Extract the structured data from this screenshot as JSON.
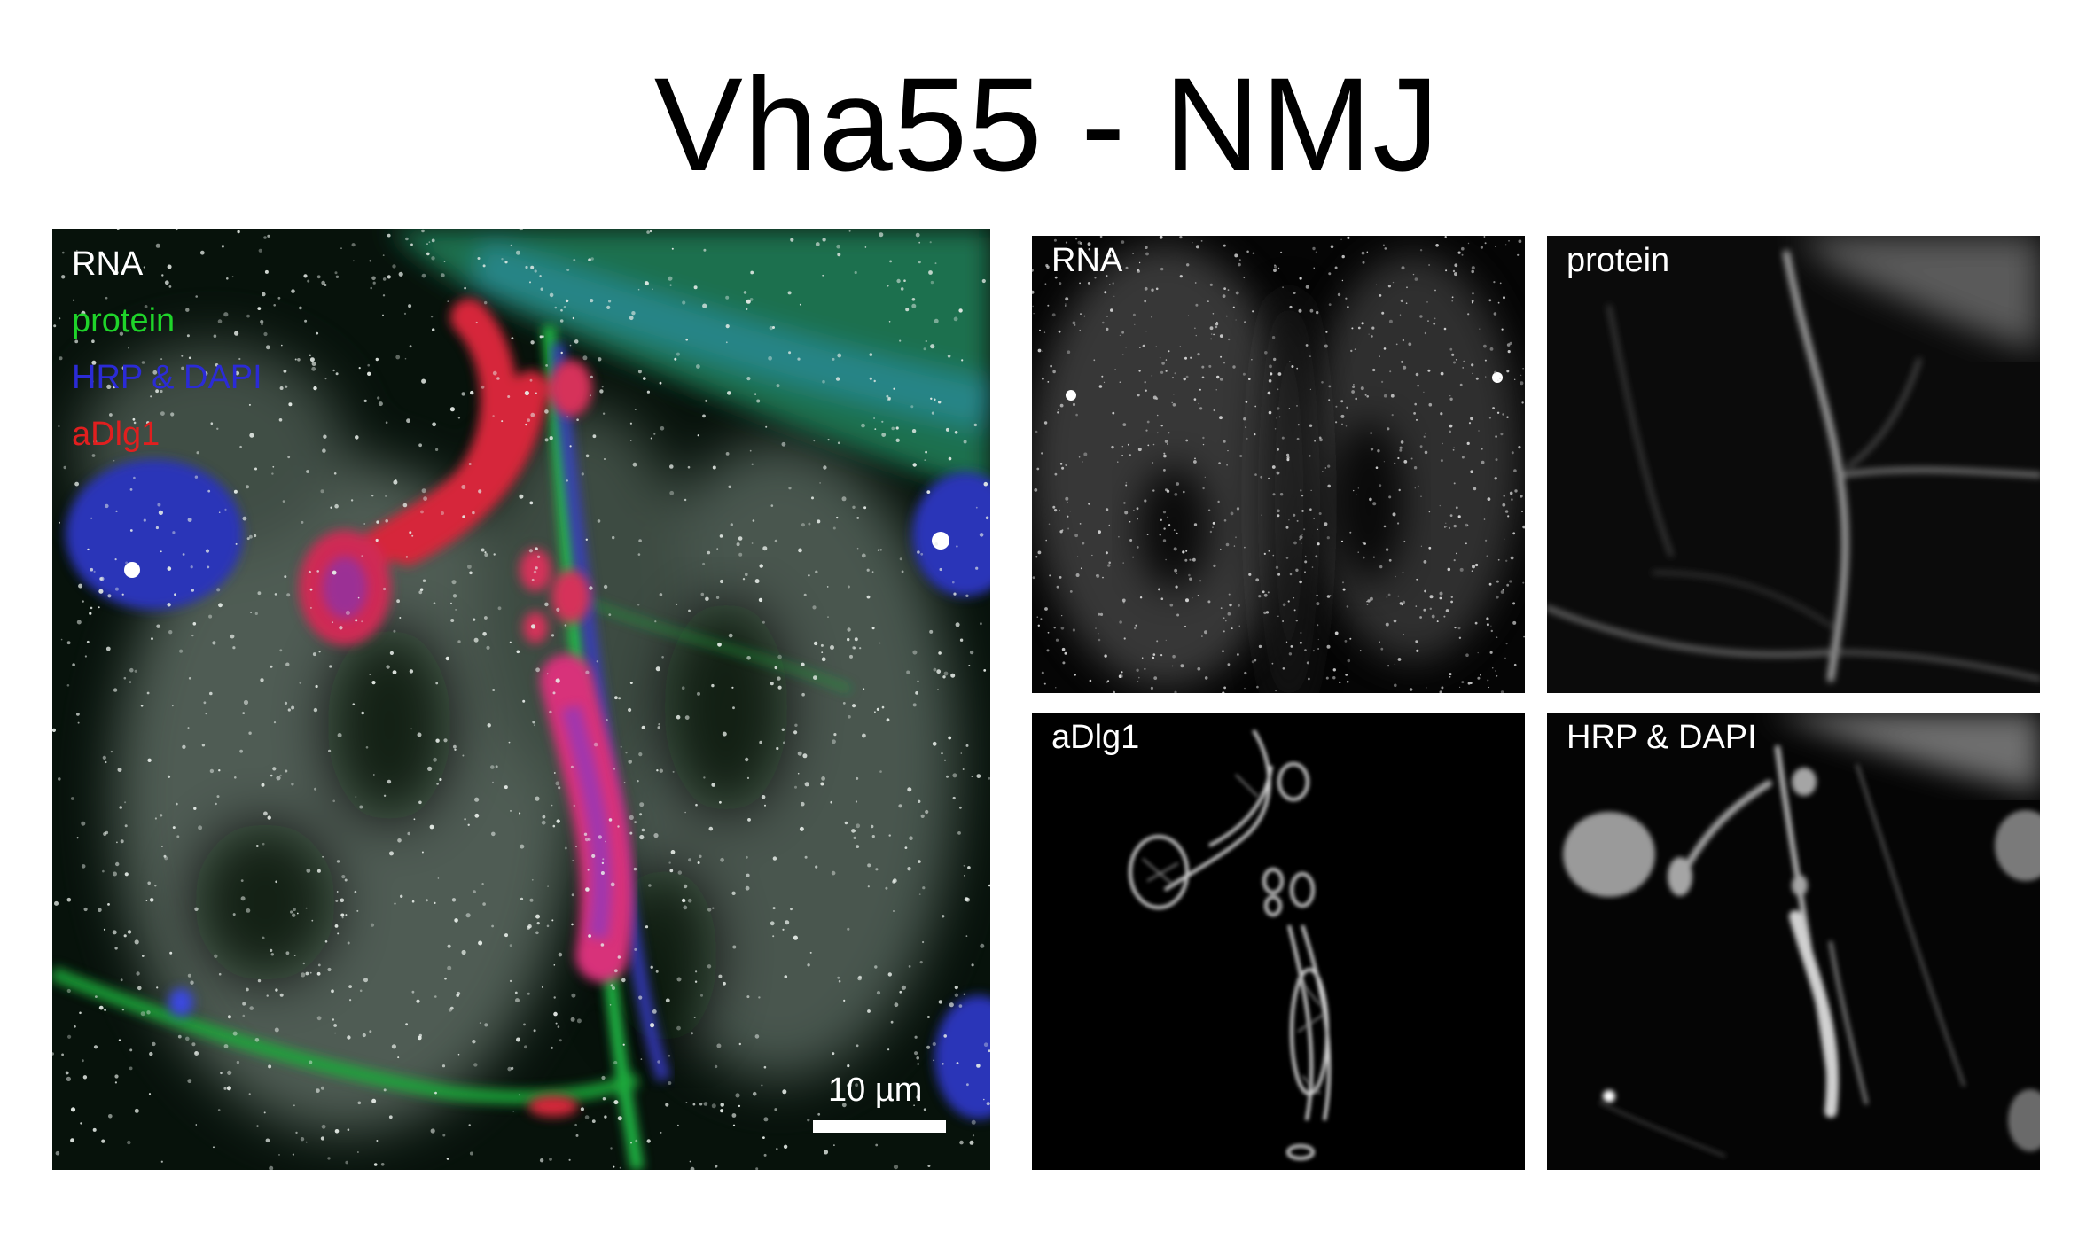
{
  "title": "Vha55 - NMJ",
  "merge_panel": {
    "legend": [
      {
        "label": "RNA",
        "color": "#ffffff"
      },
      {
        "label": "protein",
        "color": "#1fd42a"
      },
      {
        "label": "HRP & DAPI",
        "color": "#2b2bd6"
      },
      {
        "label": "aDlg1",
        "color": "#e01f1f"
      }
    ],
    "scale_bar_label": "10 µm"
  },
  "channel_panels": [
    {
      "label": "RNA"
    },
    {
      "label": "protein"
    },
    {
      "label": "aDlg1"
    },
    {
      "label": "HRP & DAPI"
    }
  ]
}
